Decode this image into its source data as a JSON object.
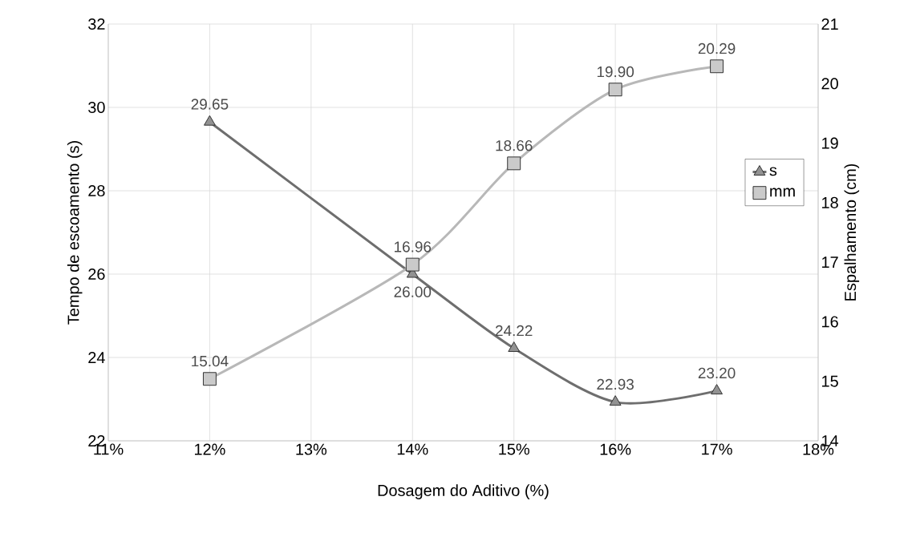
{
  "chart_data": {
    "type": "line",
    "xlabel": "Dosagem do Aditivo (%)",
    "ylabel": "Tempo de escoamento (s)",
    "y2label": "Espalhamento (cm)",
    "x": [
      12,
      14,
      15,
      16,
      17
    ],
    "xlim": [
      11,
      18
    ],
    "xticks": [
      {
        "value": 11,
        "label": "11%"
      },
      {
        "value": 12,
        "label": "12%"
      },
      {
        "value": 13,
        "label": "13%"
      },
      {
        "value": 14,
        "label": "14%"
      },
      {
        "value": 15,
        "label": "15%"
      },
      {
        "value": 16,
        "label": "16%"
      },
      {
        "value": 17,
        "label": "17%"
      },
      {
        "value": 18,
        "label": "18%"
      }
    ],
    "ylim": [
      22,
      32
    ],
    "yticks": [
      22,
      24,
      26,
      28,
      30,
      32
    ],
    "y2lim": [
      14,
      21
    ],
    "y2ticks": [
      14,
      15,
      16,
      17,
      18,
      19,
      20,
      21
    ],
    "series": [
      {
        "name": "s",
        "color": "#6e6e6e",
        "marker": "triangle",
        "values": [
          29.65,
          26.0,
          24.22,
          22.93,
          23.2
        ],
        "value_labels": [
          "29.65",
          "26.00",
          "24.22",
          "22.93",
          "23.20"
        ]
      },
      {
        "name": "mm",
        "color": "#b8b8b8",
        "marker": "square",
        "axis": "y2",
        "values": [
          15.04,
          16.96,
          18.66,
          19.9,
          20.29
        ],
        "value_labels": [
          "15.04",
          "16.96",
          "18.66",
          "19.90",
          "20.29"
        ]
      }
    ],
    "grid": true,
    "legend": "right"
  }
}
